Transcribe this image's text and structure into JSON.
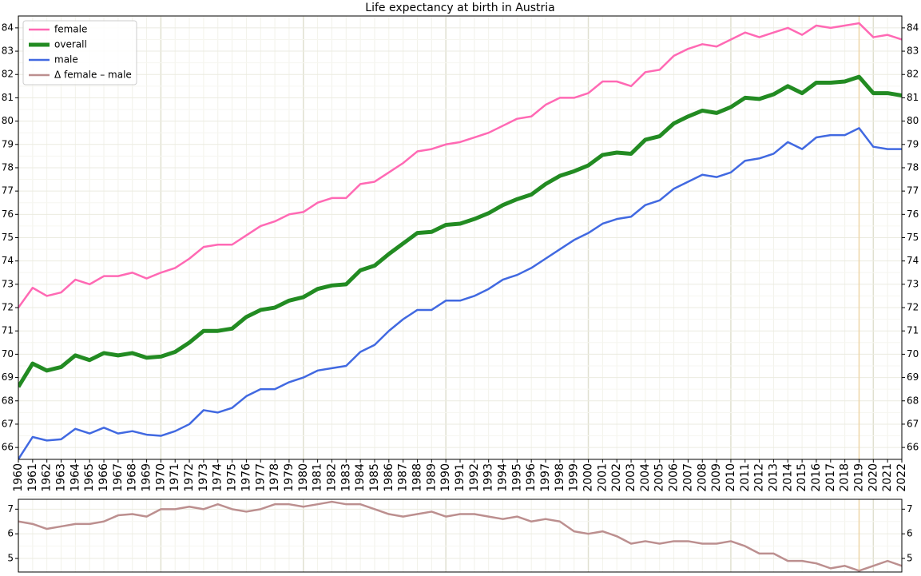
{
  "chart_data": [
    {
      "type": "line",
      "title": "Life expectancy at birth in Austria",
      "x": [
        1960,
        1961,
        1962,
        1963,
        1964,
        1965,
        1966,
        1967,
        1968,
        1969,
        1970,
        1971,
        1972,
        1973,
        1974,
        1975,
        1976,
        1977,
        1978,
        1979,
        1980,
        1981,
        1982,
        1983,
        1984,
        1985,
        1986,
        1987,
        1988,
        1989,
        1990,
        1991,
        1992,
        1993,
        1994,
        1995,
        1996,
        1997,
        1998,
        1999,
        2000,
        2001,
        2002,
        2003,
        2004,
        2005,
        2006,
        2007,
        2008,
        2009,
        2010,
        2011,
        2012,
        2013,
        2014,
        2015,
        2016,
        2017,
        2018,
        2019,
        2020,
        2021,
        2022
      ],
      "xlim": [
        1960,
        2022
      ],
      "xticks": [
        1960,
        1961,
        1962,
        1963,
        1964,
        1965,
        1966,
        1967,
        1968,
        1969,
        1970,
        1971,
        1972,
        1973,
        1974,
        1975,
        1976,
        1977,
        1978,
        1979,
        1980,
        1981,
        1982,
        1983,
        1984,
        1985,
        1986,
        1987,
        1988,
        1989,
        1990,
        1991,
        1992,
        1993,
        1994,
        1995,
        1996,
        1997,
        1998,
        1999,
        2000,
        2001,
        2002,
        2003,
        2004,
        2005,
        2006,
        2007,
        2008,
        2009,
        2010,
        2011,
        2012,
        2013,
        2014,
        2015,
        2016,
        2017,
        2018,
        2019,
        2020,
        2021,
        2022
      ],
      "ylim": [
        65.49,
        84.51
      ],
      "yticks": [
        66,
        67,
        68,
        69,
        70,
        71,
        72,
        73,
        74,
        75,
        76,
        77,
        78,
        79,
        80,
        81,
        82,
        83,
        84
      ],
      "grid": true,
      "legend": "upper left",
      "highlight_x": 2019,
      "highlight_color": "#edd5a8",
      "series": [
        {
          "name": "female",
          "color": "#ff69b4",
          "linewidth": 2.5,
          "values": [
            72.0,
            72.85,
            72.5,
            72.65,
            73.2,
            73.0,
            73.35,
            73.35,
            73.5,
            73.25,
            73.5,
            73.7,
            74.1,
            74.6,
            74.7,
            74.7,
            75.1,
            75.5,
            75.7,
            76.0,
            76.1,
            76.5,
            76.7,
            76.7,
            77.3,
            77.4,
            77.8,
            78.2,
            78.7,
            78.8,
            79.0,
            79.1,
            79.3,
            79.5,
            79.8,
            80.1,
            80.2,
            80.7,
            81.0,
            81.0,
            81.2,
            81.7,
            81.7,
            81.5,
            82.1,
            82.2,
            82.8,
            83.1,
            83.3,
            83.2,
            83.5,
            83.8,
            83.6,
            83.8,
            84.0,
            83.7,
            84.1,
            84.0,
            84.1,
            84.2,
            83.6,
            83.7,
            83.5
          ]
        },
        {
          "name": "overall",
          "color": "#228b22",
          "linewidth": 5,
          "values": [
            68.6,
            69.6,
            69.3,
            69.45,
            69.95,
            69.75,
            70.05,
            69.95,
            70.05,
            69.85,
            69.9,
            70.1,
            70.5,
            71.0,
            71.0,
            71.1,
            71.6,
            71.9,
            72.0,
            72.3,
            72.45,
            72.8,
            72.95,
            73.0,
            73.6,
            73.8,
            74.3,
            74.75,
            75.2,
            75.25,
            75.55,
            75.6,
            75.8,
            76.05,
            76.4,
            76.65,
            76.85,
            77.3,
            77.65,
            77.85,
            78.1,
            78.55,
            78.65,
            78.6,
            79.2,
            79.35,
            79.9,
            80.2,
            80.45,
            80.35,
            80.6,
            81.0,
            80.95,
            81.15,
            81.5,
            81.2,
            81.65,
            81.65,
            81.7,
            81.9,
            81.2,
            81.2,
            81.1
          ]
        },
        {
          "name": "male",
          "color": "#4169e1",
          "linewidth": 2.5,
          "values": [
            65.5,
            66.45,
            66.3,
            66.35,
            66.8,
            66.6,
            66.85,
            66.6,
            66.7,
            66.55,
            66.5,
            66.7,
            67.0,
            67.6,
            67.5,
            67.7,
            68.2,
            68.5,
            68.5,
            68.8,
            69.0,
            69.3,
            69.4,
            69.5,
            70.1,
            70.4,
            71.0,
            71.5,
            71.9,
            71.9,
            72.3,
            72.3,
            72.5,
            72.8,
            73.2,
            73.4,
            73.7,
            74.1,
            74.5,
            74.9,
            75.2,
            75.6,
            75.8,
            75.9,
            76.4,
            76.6,
            77.1,
            77.4,
            77.7,
            77.6,
            77.8,
            78.3,
            78.4,
            78.6,
            79.1,
            78.8,
            79.3,
            79.4,
            79.4,
            79.7,
            78.9,
            78.8,
            78.8
          ]
        }
      ]
    },
    {
      "type": "line",
      "x": [
        1960,
        1961,
        1962,
        1963,
        1964,
        1965,
        1966,
        1967,
        1968,
        1969,
        1970,
        1971,
        1972,
        1973,
        1974,
        1975,
        1976,
        1977,
        1978,
        1979,
        1980,
        1981,
        1982,
        1983,
        1984,
        1985,
        1986,
        1987,
        1988,
        1989,
        1990,
        1991,
        1992,
        1993,
        1994,
        1995,
        1996,
        1997,
        1998,
        1999,
        2000,
        2001,
        2002,
        2003,
        2004,
        2005,
        2006,
        2007,
        2008,
        2009,
        2010,
        2011,
        2012,
        2013,
        2014,
        2015,
        2016,
        2017,
        2018,
        2019,
        2020,
        2021,
        2022
      ],
      "xlim": [
        1960,
        2022
      ],
      "ylim": [
        4.45,
        7.4
      ],
      "yticks": [
        5,
        6,
        7
      ],
      "grid": true,
      "highlight_x": 2019,
      "highlight_color": "#edd5a8",
      "series": [
        {
          "name": "Δ female – male",
          "color": "#bc8f8f",
          "linewidth": 2.5,
          "values": [
            6.5,
            6.4,
            6.2,
            6.3,
            6.4,
            6.4,
            6.5,
            6.75,
            6.8,
            6.7,
            7.0,
            7.0,
            7.1,
            7.0,
            7.2,
            7.0,
            6.9,
            7.0,
            7.2,
            7.2,
            7.1,
            7.2,
            7.3,
            7.2,
            7.2,
            7.0,
            6.8,
            6.7,
            6.8,
            6.9,
            6.7,
            6.8,
            6.8,
            6.7,
            6.6,
            6.7,
            6.5,
            6.6,
            6.5,
            6.1,
            6.0,
            6.1,
            5.9,
            5.6,
            5.7,
            5.6,
            5.7,
            5.7,
            5.6,
            5.6,
            5.7,
            5.5,
            5.2,
            5.2,
            4.9,
            4.9,
            4.8,
            4.6,
            4.7,
            4.5,
            4.7,
            4.9,
            4.7
          ]
        }
      ]
    }
  ]
}
